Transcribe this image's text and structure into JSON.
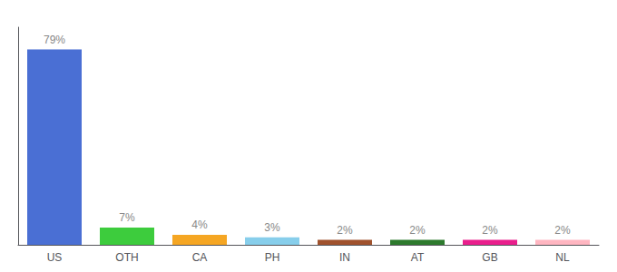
{
  "chart_data": {
    "type": "bar",
    "categories": [
      "US",
      "OTH",
      "CA",
      "PH",
      "IN",
      "AT",
      "GB",
      "NL"
    ],
    "values": [
      79,
      7,
      4,
      3,
      2,
      2,
      2,
      2
    ],
    "value_labels": [
      "79%",
      "7%",
      "4%",
      "3%",
      "2%",
      "2%",
      "2%",
      "2%"
    ],
    "colors": [
      "#4a6fd4",
      "#3dcc3d",
      "#f5a623",
      "#87ceeb",
      "#a0522d",
      "#2d7a2d",
      "#e91e8c",
      "#ffb6c1"
    ],
    "ylim": [
      0,
      88
    ],
    "data_labels": true,
    "tick_labels": "x",
    "grid": false
  }
}
